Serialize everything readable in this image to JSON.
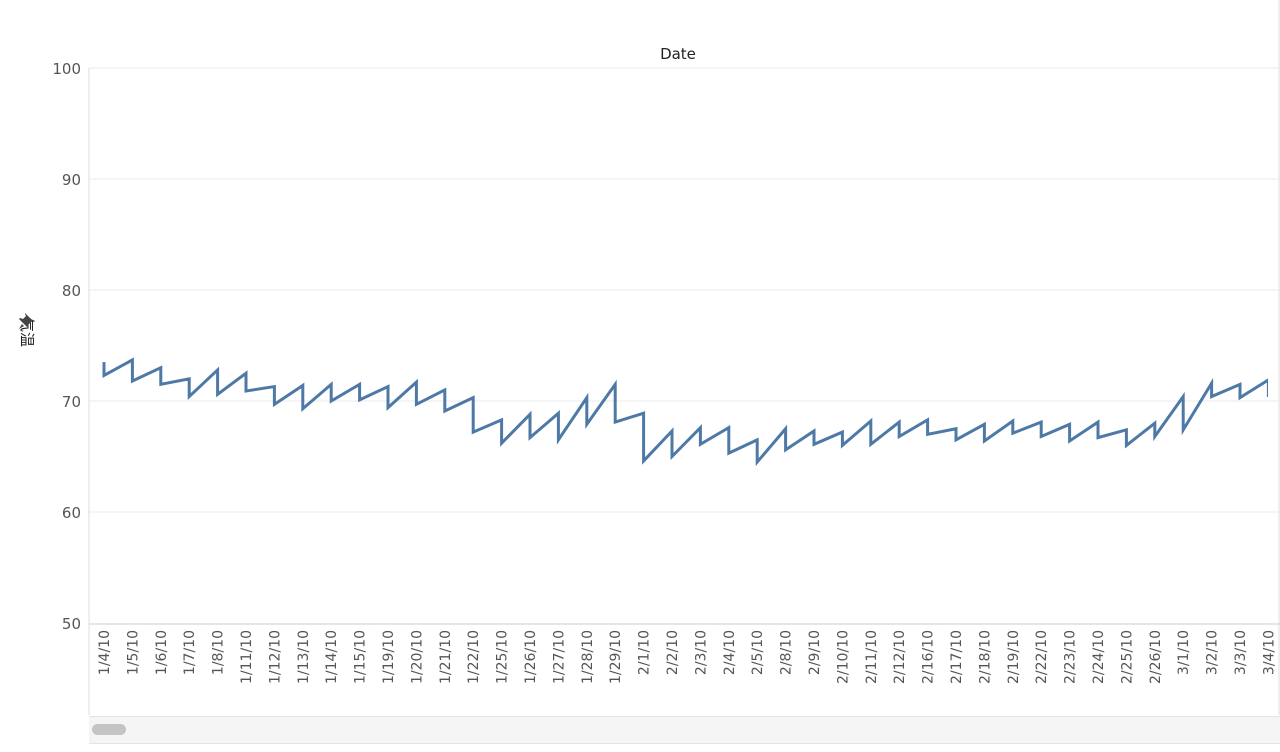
{
  "chart_data": {
    "type": "line",
    "title": "Date",
    "ylabel": "气温",
    "pin_icon": "pin-icon",
    "ylim": [
      50,
      100
    ],
    "yticks": [
      "50",
      "60",
      "70",
      "80",
      "90",
      "100"
    ],
    "colors": {
      "line": "#4e79a7"
    },
    "grid": true,
    "categories": [
      "1/4/10",
      "1/5/10",
      "1/6/10",
      "1/7/10",
      "1/8/10",
      "1/11/10",
      "1/12/10",
      "1/13/10",
      "1/14/10",
      "1/15/10",
      "1/19/10",
      "1/20/10",
      "1/21/10",
      "1/22/10",
      "1/25/10",
      "1/26/10",
      "1/27/10",
      "1/28/10",
      "1/29/10",
      "2/1/10",
      "2/2/10",
      "2/3/10",
      "2/4/10",
      "2/5/10",
      "2/8/10",
      "2/9/10",
      "2/10/10",
      "2/11/10",
      "2/12/10",
      "2/16/10",
      "2/17/10",
      "2/18/10",
      "2/19/10",
      "2/22/10",
      "2/23/10",
      "2/24/10",
      "2/25/10",
      "2/26/10",
      "3/1/10",
      "3/2/10",
      "3/3/10",
      "3/4/10"
    ],
    "series": [
      {
        "segments": [
          {
            "open": 73.5,
            "start": 72.3,
            "end": 73.7
          },
          {
            "start": 71.8,
            "end": 73.0
          },
          {
            "start": 71.5,
            "end": 72.0
          },
          {
            "start": 70.4,
            "end": 72.8
          },
          {
            "start": 70.6,
            "end": 72.5
          },
          {
            "start": 70.9,
            "end": 71.3
          },
          {
            "start": 69.7,
            "end": 71.4
          },
          {
            "start": 69.3,
            "end": 71.5
          },
          {
            "start": 70.0,
            "end": 71.5
          },
          {
            "start": 70.1,
            "end": 71.3
          },
          {
            "start": 69.4,
            "end": 71.7
          },
          {
            "start": 69.7,
            "end": 71.0
          },
          {
            "start": 69.1,
            "end": 70.3
          },
          {
            "start": 67.2,
            "end": 68.3
          },
          {
            "start": 66.2,
            "end": 68.8
          },
          {
            "start": 66.7,
            "end": 68.9
          },
          {
            "start": 66.5,
            "end": 70.3
          },
          {
            "start": 67.9,
            "end": 71.5
          },
          {
            "start": 68.1,
            "end": 68.9
          },
          {
            "start": 64.6,
            "end": 67.3
          },
          {
            "start": 65.0,
            "end": 67.6
          },
          {
            "start": 66.1,
            "end": 67.6
          },
          {
            "start": 65.3,
            "end": 66.5
          },
          {
            "start": 64.5,
            "end": 67.5
          },
          {
            "start": 65.6,
            "end": 67.3
          },
          {
            "start": 66.1,
            "end": 67.2
          },
          {
            "start": 66.0,
            "end": 68.2
          },
          {
            "start": 66.1,
            "end": 68.1
          },
          {
            "start": 66.8,
            "end": 68.3
          },
          {
            "start": 67.0,
            "end": 67.5
          },
          {
            "start": 66.5,
            "end": 67.9
          },
          {
            "start": 66.4,
            "end": 68.2
          },
          {
            "start": 67.1,
            "end": 68.1
          },
          {
            "start": 66.8,
            "end": 67.9
          },
          {
            "start": 66.4,
            "end": 68.1
          },
          {
            "start": 66.7,
            "end": 67.4
          },
          {
            "start": 66.0,
            "end": 68.0
          },
          {
            "start": 66.8,
            "end": 70.4
          },
          {
            "start": 67.4,
            "end": 71.6
          },
          {
            "start": 70.4,
            "end": 71.5
          },
          {
            "start": 70.3,
            "end": 71.9
          },
          {
            "start": 70.5,
            "end": 70.5
          }
        ]
      }
    ]
  }
}
